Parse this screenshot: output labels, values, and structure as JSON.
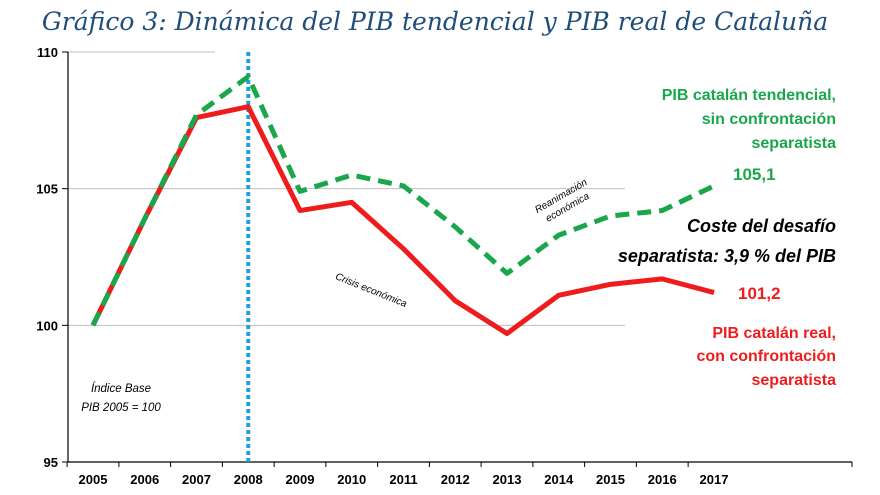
{
  "chart_data": {
    "type": "line",
    "title": "Gráfico 3: Dinámica del PIB tendencial y PIB real de Cataluña",
    "categories": [
      "2005",
      "2006",
      "2007",
      "2008",
      "2009",
      "2010",
      "2011",
      "2012",
      "2013",
      "2014",
      "2015",
      "2016",
      "2017"
    ],
    "y_ticks": [
      "95",
      "100",
      "105",
      "110"
    ],
    "ylim": [
      95,
      110
    ],
    "grid": true,
    "series": [
      {
        "name": "PIB catalán tendencial, sin confrontación separatista",
        "color": "#1aa64a",
        "style": "dashed",
        "values": [
          100,
          103.9,
          107.7,
          109.1,
          104.9,
          105.5,
          105.1,
          103.6,
          101.9,
          103.3,
          104.0,
          104.2,
          105.1
        ]
      },
      {
        "name": "PIB catalán real, con confrontación separatista",
        "color": "#ee1c1c",
        "style": "solid",
        "values": [
          100,
          103.9,
          107.6,
          108.0,
          104.2,
          104.5,
          102.8,
          100.9,
          99.7,
          101.1,
          101.5,
          101.7,
          101.2
        ]
      }
    ],
    "vertical_marker": {
      "category": "2008",
      "color": "#1ba1e2",
      "style": "dotted"
    },
    "annotations": {
      "green_label": [
        "PIB catalán tendencial,",
        "sin confrontación",
        "separatista"
      ],
      "red_label": [
        "PIB catalán real,",
        "con confrontación",
        "separatista"
      ],
      "green_end_value": "105,1",
      "red_end_value": "101,2",
      "coste": [
        "Coste del desafío",
        "separatista: 3,9 % del PIB"
      ],
      "crisis": "Crisis económica",
      "reanimacion": [
        "Reanimación",
        "económica"
      ],
      "indice_base": [
        "Índice Base",
        "PIB 2005 = 100"
      ]
    },
    "colors": {
      "title": "#1f4e79",
      "grid": "#bfbfbf",
      "axis": "#000000"
    }
  }
}
